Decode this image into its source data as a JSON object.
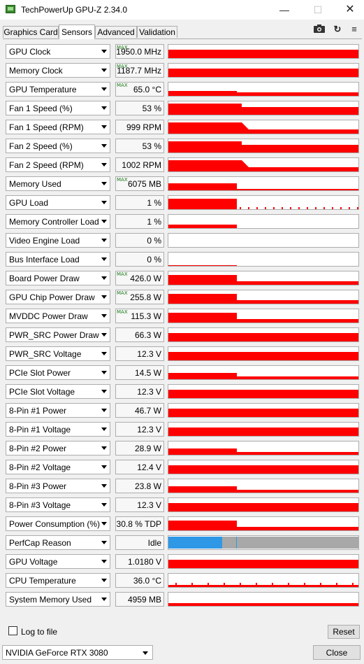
{
  "window": {
    "title": "TechPowerUp GPU-Z 2.34.0",
    "controls": {
      "minimize": "—",
      "maximize": "☐",
      "close": "✕"
    }
  },
  "tabs": [
    {
      "label": "Graphics Card",
      "active": false
    },
    {
      "label": "Sensors",
      "active": true
    },
    {
      "label": "Advanced",
      "active": false
    },
    {
      "label": "Validation",
      "active": false
    }
  ],
  "toolbar": {
    "icons": [
      "camera-icon",
      "refresh-icon",
      "menu-icon"
    ]
  },
  "colors": {
    "graph": "#ff0000",
    "perfcap_blue": "#2f98e6",
    "perfcap_gray": "#a8a8a8"
  },
  "sensors": [
    {
      "label": "GPU Clock",
      "value": "1950.0 MHz",
      "max": true
    },
    {
      "label": "Memory Clock",
      "value": "1187.7 MHz",
      "max": true
    },
    {
      "label": "GPU Temperature",
      "value": "65.0 °C",
      "max": true
    },
    {
      "label": "Fan 1 Speed (%)",
      "value": "53 %",
      "max": false
    },
    {
      "label": "Fan 1 Speed (RPM)",
      "value": "999 RPM",
      "max": false
    },
    {
      "label": "Fan 2 Speed (%)",
      "value": "53 %",
      "max": false
    },
    {
      "label": "Fan 2 Speed (RPM)",
      "value": "1002 RPM",
      "max": false
    },
    {
      "label": "Memory Used",
      "value": "6075 MB",
      "max": true
    },
    {
      "label": "GPU Load",
      "value": "1 %",
      "max": false
    },
    {
      "label": "Memory Controller Load",
      "value": "1 %",
      "max": false
    },
    {
      "label": "Video Engine Load",
      "value": "0 %",
      "max": false
    },
    {
      "label": "Bus Interface Load",
      "value": "0 %",
      "max": false
    },
    {
      "label": "Board Power Draw",
      "value": "426.0 W",
      "max": true
    },
    {
      "label": "GPU Chip Power Draw",
      "value": "255.8 W",
      "max": true
    },
    {
      "label": "MVDDC Power Draw",
      "value": "115.3 W",
      "max": true
    },
    {
      "label": "PWR_SRC Power Draw",
      "value": "66.3 W",
      "max": false
    },
    {
      "label": "PWR_SRC Voltage",
      "value": "12.3 V",
      "max": false
    },
    {
      "label": "PCIe Slot Power",
      "value": "14.5 W",
      "max": false
    },
    {
      "label": "PCIe Slot Voltage",
      "value": "12.3 V",
      "max": false
    },
    {
      "label": "8-Pin #1 Power",
      "value": "46.7 W",
      "max": false
    },
    {
      "label": "8-Pin #1 Voltage",
      "value": "12.3 V",
      "max": false
    },
    {
      "label": "8-Pin #2 Power",
      "value": "28.9 W",
      "max": false
    },
    {
      "label": "8-Pin #2 Voltage",
      "value": "12.4 V",
      "max": false
    },
    {
      "label": "8-Pin #3 Power",
      "value": "23.8 W",
      "max": false
    },
    {
      "label": "8-Pin #3 Voltage",
      "value": "12.3 V",
      "max": false
    },
    {
      "label": "Power Consumption (%)",
      "value": "30.8 % TDP",
      "max": false
    },
    {
      "label": "PerfCap Reason",
      "value": "Idle",
      "max": false
    },
    {
      "label": "GPU Voltage",
      "value": "1.0180 V",
      "max": false
    },
    {
      "label": "CPU Temperature",
      "value": "36.0 °C",
      "max": false
    },
    {
      "label": "System Memory Used",
      "value": "4959 MB",
      "max": false
    }
  ],
  "max_label": "MAX",
  "footer": {
    "log_to_file": "Log to file",
    "reset": "Reset",
    "gpu_select": "NVIDIA GeForce RTX 3080",
    "close": "Close"
  }
}
